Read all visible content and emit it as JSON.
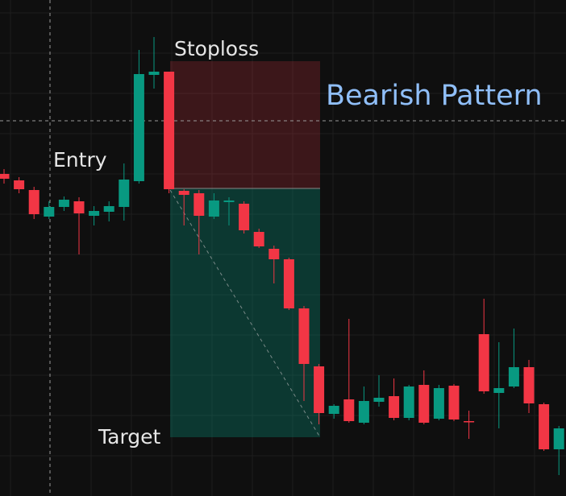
{
  "chart_data": {
    "type": "candlestick",
    "annotations": {
      "stoploss": "Stoploss",
      "entry": "Entry",
      "target": "Target",
      "pattern": "Bearish Pattern"
    },
    "ylim": [
      0,
      616
    ],
    "up_color": "#089981",
    "down_color": "#f23645",
    "open": [
      400,
      392,
      380,
      347,
      359,
      366,
      348,
      353,
      359,
      391,
      523,
      527,
      379,
      376,
      347,
      365,
      363,
      328,
      307,
      294,
      233,
      161,
      102,
      120,
      91,
      117,
      124,
      97,
      138,
      96,
      137,
      93,
      201,
      128,
      136,
      160,
      114,
      58
    ],
    "high": [
      406,
      396,
      384,
      366,
      372,
      371,
      360,
      366,
      413,
      554,
      570,
      527,
      381,
      380,
      376,
      371,
      366,
      332,
      311,
      296,
      236,
      164,
      114,
      220,
      136,
      150,
      146,
      138,
      156,
      138,
      139,
      106,
      245,
      191,
      208,
      169,
      116,
      87
    ],
    "low": [
      388,
      376,
      344,
      344,
      354,
      300,
      336,
      341,
      342,
      388,
      506,
      376,
      336,
      300,
      344,
      336,
      326,
      308,
      264,
      231,
      118,
      89,
      96,
      91,
      89,
      111,
      94,
      94,
      89,
      94,
      93,
      71,
      127,
      84,
      134,
      103,
      56,
      26
    ],
    "close": [
      394,
      381,
      350,
      359,
      368,
      351,
      354,
      360,
      393,
      524,
      527,
      381,
      374,
      348,
      367,
      367,
      330,
      310,
      294,
      233,
      164,
      103,
      112,
      93,
      118,
      122,
      97,
      136,
      91,
      134,
      95,
      92,
      130,
      134,
      160,
      115,
      58,
      84
    ]
  }
}
